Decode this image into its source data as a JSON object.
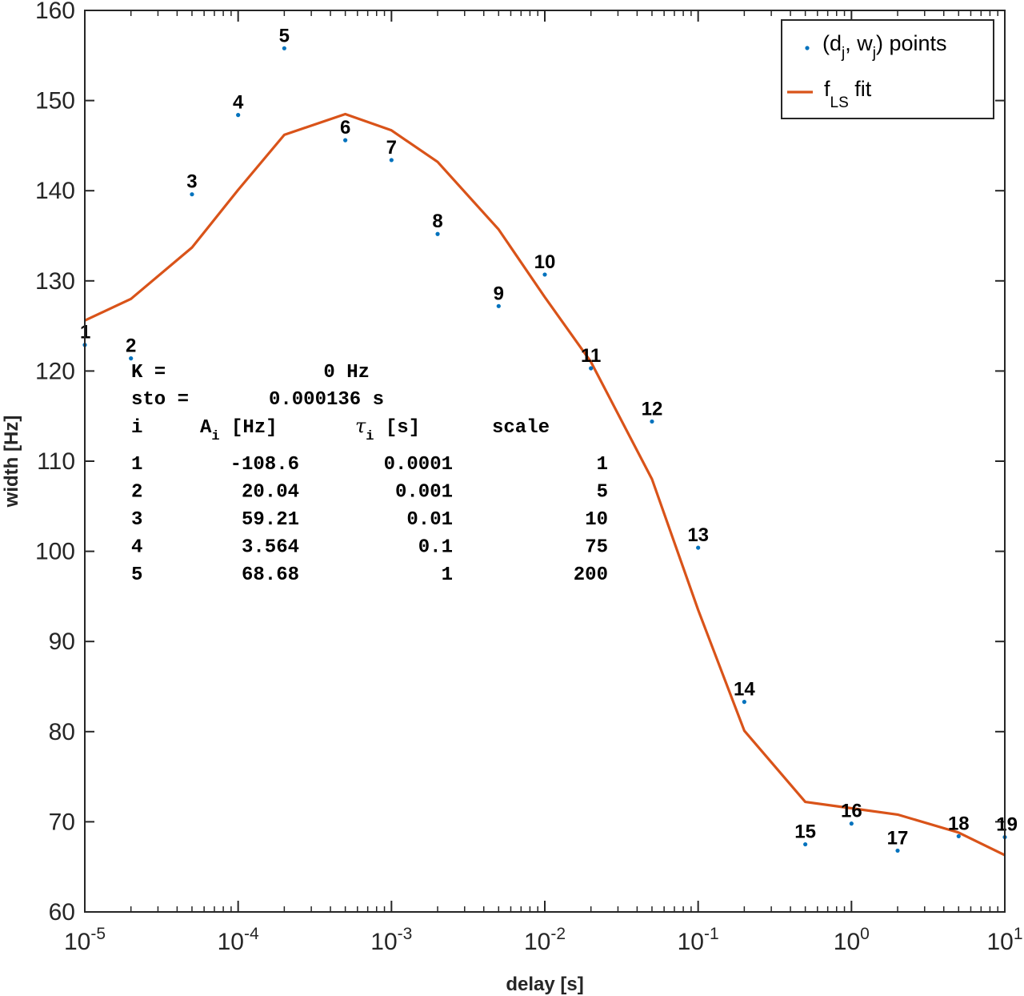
{
  "chart_data": {
    "type": "scatter",
    "xlabel": "delay [s]",
    "ylabel": "width [Hz]",
    "xscale": "log",
    "xlim": [
      1e-05,
      10
    ],
    "ylim": [
      60,
      160
    ],
    "x_tick_labels": [
      "10^-5",
      "10^-4",
      "10^-3",
      "10^-2",
      "10^-1",
      "10^0",
      "10^1"
    ],
    "y_ticks": [
      60,
      70,
      80,
      90,
      100,
      110,
      120,
      130,
      140,
      150,
      160
    ],
    "grid": false,
    "legend_position": "top-right",
    "legend": [
      {
        "label": "(d_j, w_j) points",
        "kind": "marker"
      },
      {
        "label": "f_LS fit",
        "kind": "line"
      }
    ],
    "colors": {
      "points": "#0072bd",
      "fit": "#d95319",
      "axes": "#262626"
    },
    "series": [
      {
        "name": "(d_j, w_j) points",
        "kind": "points",
        "labels": [
          "1",
          "2",
          "3",
          "4",
          "5",
          "6",
          "7",
          "8",
          "9",
          "10",
          "11",
          "12",
          "13",
          "14",
          "15",
          "16",
          "17",
          "18",
          "19"
        ],
        "x": [
          1e-05,
          2e-05,
          5e-05,
          0.0001,
          0.0002,
          0.0005,
          0.001,
          0.002,
          0.005,
          0.01,
          0.02,
          0.05,
          0.1,
          0.2,
          0.5,
          1,
          2,
          5,
          10
        ],
        "y": [
          122.9,
          121.4,
          139.6,
          148.4,
          155.8,
          145.6,
          143.4,
          135.2,
          127.2,
          130.7,
          120.3,
          114.4,
          100.4,
          83.3,
          67.5,
          69.8,
          66.8,
          68.4,
          68.3
        ]
      },
      {
        "name": "f_LS fit",
        "kind": "line",
        "x": [
          1e-05,
          2e-05,
          5e-05,
          0.0001,
          0.0002,
          0.0005,
          0.001,
          0.002,
          0.005,
          0.01,
          0.02,
          0.05,
          0.1,
          0.2,
          0.5,
          1,
          2,
          5,
          10
        ],
        "y": [
          125.6,
          128.0,
          133.7,
          140.1,
          146.2,
          148.5,
          146.7,
          143.2,
          135.7,
          128.2,
          121.0,
          108.0,
          93.5,
          80.1,
          72.2,
          71.5,
          70.8,
          68.8,
          66.3
        ]
      }
    ],
    "annotation": {
      "k_label": "K =",
      "k_value": "0 Hz",
      "sto_label": "sto =",
      "sto_value": "0.000136 s",
      "headers": [
        "i",
        "A_i [Hz]",
        "τ_i [s]",
        "scale"
      ],
      "rows": [
        [
          "1",
          "-108.6",
          "0.0001",
          "1"
        ],
        [
          "2",
          "20.04",
          "0.001",
          "5"
        ],
        [
          "3",
          "59.21",
          "0.01",
          "10"
        ],
        [
          "4",
          "3.564",
          "0.1",
          "75"
        ],
        [
          "5",
          "68.68",
          "1",
          "200"
        ]
      ]
    }
  }
}
